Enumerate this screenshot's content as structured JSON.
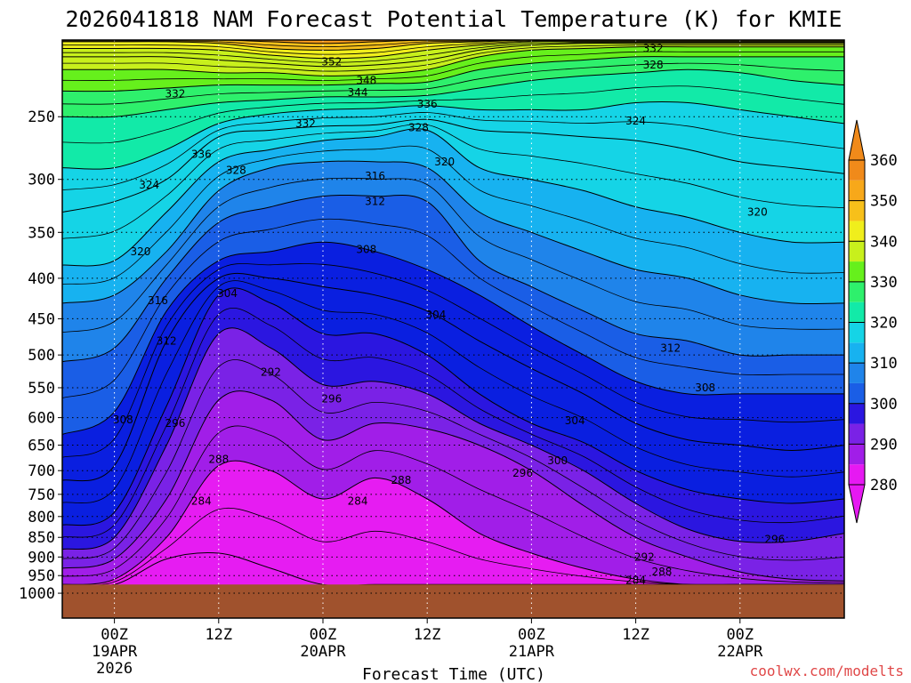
{
  "chart_data": {
    "type": "heatmap",
    "title": "2026041818 NAM Forecast Potential Temperature (K) for KMIE",
    "xlabel": "Forecast Time (UTC)",
    "ylabel": "",
    "credit": "coolwx.com/modelts",
    "y_axis": {
      "scale": "pressure",
      "reversed": true,
      "ylim": [
        1075,
        200
      ],
      "ticks": [
        250,
        300,
        350,
        400,
        450,
        500,
        550,
        600,
        650,
        700,
        750,
        800,
        850,
        900,
        950,
        1000
      ]
    },
    "x_axis": {
      "xlim": [
        -6,
        84
      ],
      "ticks": [
        {
          "hour": 0,
          "lines": [
            "00Z",
            "19APR",
            "2026"
          ]
        },
        {
          "hour": 12,
          "lines": [
            "12Z"
          ]
        },
        {
          "hour": 24,
          "lines": [
            "00Z",
            "20APR"
          ]
        },
        {
          "hour": 36,
          "lines": [
            "12Z"
          ]
        },
        {
          "hour": 48,
          "lines": [
            "00Z",
            "21APR"
          ]
        },
        {
          "hour": 60,
          "lines": [
            "12Z"
          ]
        },
        {
          "hour": 72,
          "lines": [
            "00Z",
            "22APR"
          ]
        }
      ]
    },
    "grid": true,
    "ground_level_hpa": 975,
    "colorbar": {
      "levels": [
        280,
        290,
        300,
        310,
        320,
        330,
        340,
        350,
        360
      ],
      "colors": [
        "#e619f2",
        "#8a20e8",
        "#1a14e0",
        "#1f6ce8",
        "#1aa8f0",
        "#16e8b4",
        "#55f01a",
        "#f0f01a",
        "#f7a81a",
        "#f08a1a"
      ],
      "colors_meaning": "fill colors from <280 to >360 in 5 K steps",
      "placement": "right"
    },
    "colors": {
      "ground": "#a0522d",
      "series_fill": [
        "#e61cf2",
        "#a11ee8",
        "#7a22e6",
        "#2b16e0",
        "#0a1fe0",
        "#1a5ee6",
        "#1f84ea",
        "#17b2f0",
        "#15d4e6",
        "#12eaa8",
        "#2ef06c",
        "#66f01c",
        "#c8f01c",
        "#f0ee1c",
        "#f7c01a",
        "#f79a1a"
      ]
    },
    "fill_levels_K": [
      285,
      290,
      295,
      300,
      305,
      310,
      315,
      320,
      325,
      330,
      335,
      340,
      345,
      350,
      355
    ],
    "level_profiles": {
      "hours": [
        -6,
        0,
        6,
        12,
        18,
        24,
        30,
        36,
        42,
        48,
        54,
        60,
        66,
        72,
        78,
        84
      ],
      "pressure_hpa_of_isentrope": {
        "284": [
          975,
          975,
          905,
          890,
          930,
          975,
          975,
          975,
          975,
          975,
          975,
          975,
          975,
          975,
          975,
          975
        ],
        "288": [
          975,
          960,
          850,
          690,
          700,
          760,
          715,
          760,
          840,
          890,
          930,
          960,
          975,
          975,
          975,
          975
        ],
        "292": [
          930,
          905,
          760,
          570,
          570,
          640,
          610,
          620,
          650,
          700,
          775,
          850,
          900,
          940,
          960,
          965
        ],
        "296": [
          880,
          850,
          650,
          470,
          490,
          545,
          540,
          560,
          610,
          650,
          700,
          770,
          830,
          860,
          860,
          840
        ],
        "300": [
          820,
          790,
          580,
          420,
          430,
          470,
          470,
          500,
          560,
          610,
          645,
          700,
          740,
          760,
          770,
          760
        ],
        "304": [
          720,
          690,
          480,
          400,
          400,
          410,
          420,
          440,
          480,
          520,
          560,
          610,
          640,
          650,
          660,
          650
        ],
        "308": [
          630,
          590,
          440,
          380,
          370,
          360,
          370,
          390,
          420,
          460,
          500,
          540,
          560,
          560,
          560,
          560
        ],
        "312": [
          510,
          490,
          400,
          340,
          325,
          315,
          315,
          320,
          380,
          410,
          440,
          470,
          480,
          500,
          500,
          500
        ],
        "316": [
          430,
          420,
          370,
          310,
          290,
          285,
          285,
          290,
          330,
          350,
          370,
          390,
          400,
          420,
          430,
          430
        ],
        "320": [
          385,
          380,
          330,
          285,
          275,
          268,
          265,
          260,
          290,
          300,
          310,
          325,
          335,
          350,
          360,
          360
        ],
        "324": [
          330,
          320,
          300,
          265,
          260,
          257,
          256,
          252,
          260,
          262,
          265,
          268,
          275,
          285,
          290,
          295
        ],
        "328": [
          290,
          290,
          275,
          255,
          248,
          245,
          244,
          242,
          245,
          245,
          245,
          240,
          240,
          245,
          250,
          255
        ],
        "332": [
          250,
          250,
          245,
          240,
          238,
          236,
          236,
          235,
          230,
          225,
          222,
          220,
          218,
          220,
          225,
          228
        ],
        "336": [
          232,
          232,
          230,
          228,
          228,
          228,
          227,
          226,
          218,
          214,
          212,
          210,
          210,
          210,
          210,
          210
        ],
        "340": [
          218,
          218,
          218,
          220,
          220,
          222,
          221,
          218,
          210,
          206,
          205,
          204,
          204,
          204,
          204,
          204
        ],
        "344": [
          210,
          210,
          210,
          212,
          214,
          216,
          215,
          212,
          206,
          203,
          202,
          202,
          202,
          202,
          202,
          202
        ],
        "348": [
          205,
          205,
          205,
          206,
          209,
          211,
          210,
          206,
          203,
          201,
          201,
          201,
          201,
          201,
          201,
          201
        ],
        "352": [
          201,
          201,
          201,
          202,
          205,
          206,
          205,
          202,
          201,
          200,
          200,
          200,
          200,
          200,
          200,
          200
        ],
        "356": [
          200,
          200,
          200,
          200,
          201,
          202,
          201,
          200,
          200,
          200,
          200,
          200,
          200,
          200,
          200,
          200
        ]
      }
    },
    "contour_labels": [
      {
        "text": "352",
        "hour": 25,
        "p": 213
      },
      {
        "text": "348",
        "hour": 29,
        "p": 225
      },
      {
        "text": "344",
        "hour": 28,
        "p": 233
      },
      {
        "text": "336",
        "hour": 36,
        "p": 241
      },
      {
        "text": "332",
        "hour": 22,
        "p": 255
      },
      {
        "text": "328",
        "hour": 35,
        "p": 258
      },
      {
        "text": "332",
        "hour": 7,
        "p": 234
      },
      {
        "text": "336",
        "hour": 10,
        "p": 279
      },
      {
        "text": "328",
        "hour": 14,
        "p": 292
      },
      {
        "text": "324",
        "hour": 4,
        "p": 305
      },
      {
        "text": "320",
        "hour": 3,
        "p": 370
      },
      {
        "text": "316",
        "hour": 5,
        "p": 427
      },
      {
        "text": "312",
        "hour": 6,
        "p": 480
      },
      {
        "text": "308",
        "hour": 1,
        "p": 604
      },
      {
        "text": "296",
        "hour": 7,
        "p": 610
      },
      {
        "text": "292",
        "hour": 18,
        "p": 526
      },
      {
        "text": "288",
        "hour": 12,
        "p": 677
      },
      {
        "text": "284",
        "hour": 10,
        "p": 765
      },
      {
        "text": "296",
        "hour": 25,
        "p": 568
      },
      {
        "text": "288",
        "hour": 33,
        "p": 720
      },
      {
        "text": "284",
        "hour": 28,
        "p": 765
      },
      {
        "text": "316",
        "hour": 30,
        "p": 297
      },
      {
        "text": "312",
        "hour": 30,
        "p": 320
      },
      {
        "text": "308",
        "hour": 29,
        "p": 368
      },
      {
        "text": "304",
        "hour": 13,
        "p": 418
      },
      {
        "text": "304",
        "hour": 37,
        "p": 445
      },
      {
        "text": "320",
        "hour": 38,
        "p": 285
      },
      {
        "text": "304",
        "hour": 53,
        "p": 605
      },
      {
        "text": "296",
        "hour": 47,
        "p": 705
      },
      {
        "text": "300",
        "hour": 51,
        "p": 680
      },
      {
        "text": "292",
        "hour": 61,
        "p": 900
      },
      {
        "text": "288",
        "hour": 63,
        "p": 940
      },
      {
        "text": "284",
        "hour": 60,
        "p": 963
      },
      {
        "text": "296",
        "hour": 76,
        "p": 855
      },
      {
        "text": "308",
        "hour": 68,
        "p": 550
      },
      {
        "text": "312",
        "hour": 64,
        "p": 490
      },
      {
        "text": "324",
        "hour": 60,
        "p": 253
      },
      {
        "text": "328",
        "hour": 62,
        "p": 215
      },
      {
        "text": "332",
        "hour": 62,
        "p": 205
      },
      {
        "text": "320",
        "hour": 74,
        "p": 330
      }
    ]
  }
}
